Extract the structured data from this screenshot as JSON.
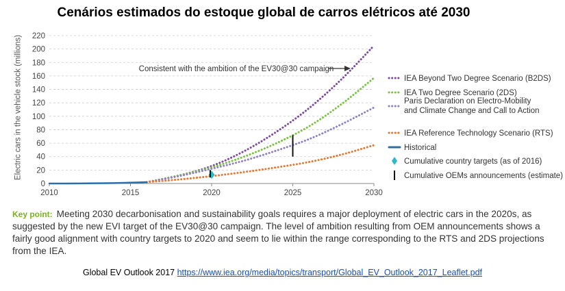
{
  "page": {
    "title": "Cenários estimados do estoque global de carros elétricos até 2030",
    "key_point_label": "Key point:",
    "key_point_text": "Meeting 2030 decarbonisation and sustainability goals requires a major deployment of electric cars in the 2020s, as suggested by the new EVI target of the EV30@30 campaign. The level of ambition resulting from OEM announcements shows a fairly good alignment with country targets to 2020 and seem to lie within the range corresponding to the RTS and 2DS projections from the IEA.",
    "source_prefix": "Global EV Outlook 2017",
    "source_link": "https://www.iea.org/media/topics/transport/Global_EV_Outlook_2017_Leaflet.pdf"
  },
  "chart_data": {
    "type": "line",
    "title": "Cenários estimados do estoque global de carros elétricos até 2030",
    "ylabel": "Electric cars in the vehicle stock (millions)",
    "xlabel": "",
    "xlim": [
      2010,
      2030
    ],
    "ylim": [
      0,
      220
    ],
    "xticks": [
      2010,
      2015,
      2020,
      2025,
      2030
    ],
    "yticks": [
      0,
      20,
      40,
      60,
      80,
      100,
      120,
      140,
      160,
      180,
      200,
      220
    ],
    "grid": "horizontal dashed",
    "legend_position": "right",
    "annotation": "Consistent with the ambition of the EV30@30 campaign",
    "series": [
      {
        "name": "IEA Beyond Two Degree Scenario (B2DS)",
        "color": "#7b4a9e",
        "style": "dotted",
        "x": [
          2016,
          2018,
          2020,
          2022,
          2024,
          2026,
          2028,
          2030
        ],
        "y": [
          2,
          12,
          26,
          48,
          77,
          112,
          155,
          205
        ]
      },
      {
        "name": "IEA Two Degree Scenario (2DS)",
        "color": "#7bc142",
        "style": "dotted",
        "x": [
          2016,
          2018,
          2020,
          2022,
          2024,
          2026,
          2028,
          2030
        ],
        "y": [
          2,
          12,
          24,
          40,
          60,
          85,
          118,
          157
        ]
      },
      {
        "name": "Paris Declaration on Electro-Mobility and Climate Change and Call to Action",
        "color": "#8e80c4",
        "style": "dotted",
        "x": [
          2016,
          2018,
          2020,
          2022,
          2024,
          2026,
          2028,
          2030
        ],
        "y": [
          2,
          11,
          22,
          34,
          49,
          66,
          88,
          113
        ]
      },
      {
        "name": "IEA Reference Technology Scenario (RTS)",
        "color": "#e8762c",
        "style": "dotted",
        "x": [
          2016,
          2018,
          2020,
          2022,
          2024,
          2026,
          2028,
          2030
        ],
        "y": [
          2,
          6,
          11,
          17,
          24,
          32,
          43,
          57
        ]
      },
      {
        "name": "Historical",
        "color": "#2a6fa8",
        "style": "solid",
        "x": [
          2010,
          2011,
          2012,
          2013,
          2014,
          2015,
          2016
        ],
        "y": [
          0.02,
          0.06,
          0.18,
          0.38,
          0.7,
          1.26,
          2.0
        ]
      }
    ],
    "markers": [
      {
        "name": "Cumulative country targets (as of 2016)",
        "color": "#2fb8c6",
        "shape": "diamond",
        "x": 2020,
        "y": 13
      },
      {
        "name": "Cumulative OEMs announcements (estimate)",
        "color": "#111111",
        "shape": "range",
        "ranges": [
          {
            "x": 2020,
            "y": [
              9,
              20
            ]
          },
          {
            "x": 2025,
            "y": [
              40,
              72
            ]
          }
        ]
      }
    ],
    "legend_lines": {
      "paris": [
        "Paris Declaration on Electro-Mobility",
        "and Climate Change and Call to Action"
      ]
    }
  }
}
